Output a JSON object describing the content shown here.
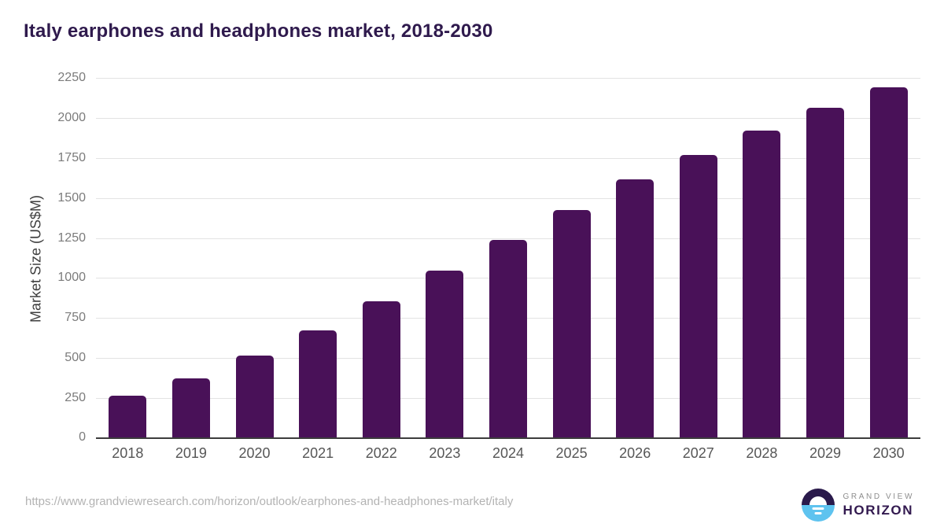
{
  "chart": {
    "title": "Italy earphones and headphones market, 2018-2030",
    "ylabel": "Market Size (US$M)"
  },
  "chart_data": {
    "type": "bar",
    "title": "Italy earphones and headphones market, 2018-2030",
    "xlabel": "",
    "ylabel": "Market Size (US$M)",
    "categories": [
      "2018",
      "2019",
      "2020",
      "2021",
      "2022",
      "2023",
      "2024",
      "2025",
      "2026",
      "2027",
      "2028",
      "2029",
      "2030"
    ],
    "values": [
      270,
      378,
      520,
      678,
      861,
      1050,
      1245,
      1430,
      1620,
      1772,
      1925,
      2068,
      2198
    ],
    "ylim": [
      0,
      2250
    ],
    "yticks": [
      0,
      250,
      500,
      750,
      1000,
      1250,
      1500,
      1750,
      2000,
      2250
    ],
    "grid": "horizontal",
    "legend": "none",
    "bar_color": "#491158"
  },
  "footer": {
    "source_url": "https://www.grandviewresearch.com/horizon/outlook/earphones-and-headphones-market/italy",
    "logo": {
      "top": "GRAND VIEW",
      "bottom": "HORIZON"
    }
  },
  "colors": {
    "title": "#2f1a4d",
    "bar": "#491158",
    "gridline": "#e3e3e3",
    "axis_line": "#3d3d3d",
    "ytick_text": "#7b7b7b",
    "xtick_text": "#565656",
    "url_text": "#b3b3b3",
    "logo_top_half": "#2a1a4b",
    "logo_bottom_half": "#5ec3ef"
  }
}
